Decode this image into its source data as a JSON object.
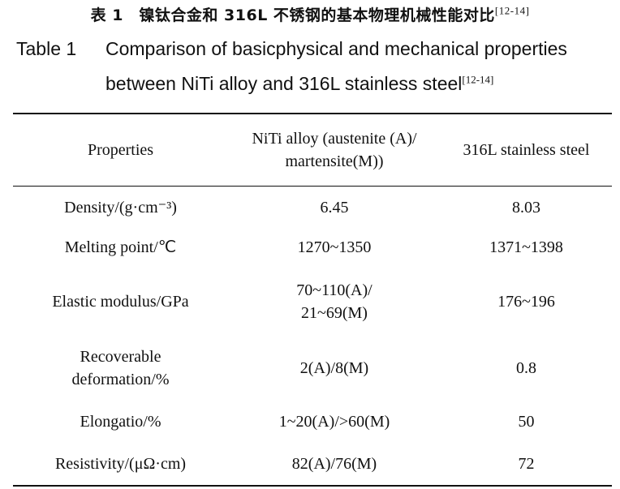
{
  "caption": {
    "cn": "表 1　镍钛合金和 316L 不锈钢的基本物理机械性能对比",
    "en_label": "Table 1",
    "en_line1": "Comparison of basicphysical and mechanical properties",
    "en_line2": "between NiTi alloy and 316L stainless steel",
    "ref": "[12-14]"
  },
  "table": {
    "headers": [
      "Properties",
      "NiTi alloy (austenite (A)/ martensite(M))",
      "316L stainless steel"
    ],
    "rows": [
      [
        "Density/(g·cm⁻³)",
        "6.45",
        "8.03"
      ],
      [
        "Melting point/℃",
        "1270~1350",
        "1371~1398"
      ],
      [
        "Elastic modulus/GPa",
        "70~110(A)/ 21~69(M)",
        "176~196"
      ],
      [
        "Recoverable deformation/%",
        "2(A)/8(M)",
        "0.8"
      ],
      [
        "Elongatio/%",
        "1~20(A)/>60(M)",
        "50"
      ],
      [
        "Resistivity/(μΩ·cm)",
        "82(A)/76(M)",
        "72"
      ]
    ]
  }
}
